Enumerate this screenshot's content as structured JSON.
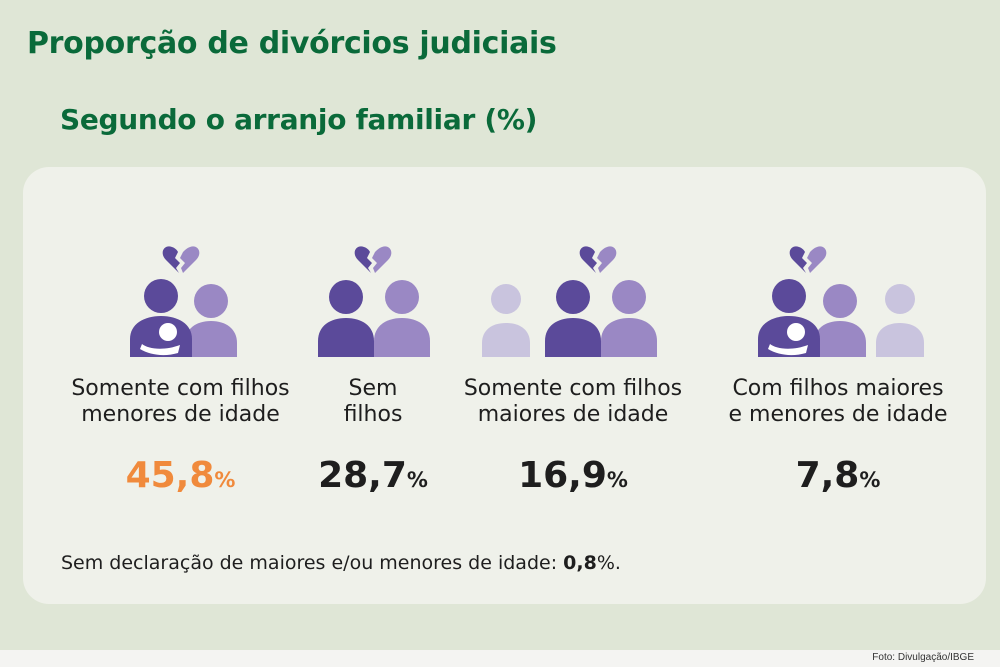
{
  "title": "Proporção de divórcios judiciais",
  "subtitle": "Segundo o arranjo familiar (%)",
  "colors": {
    "title_green": "#0a6a3a",
    "dark_purple": "#5b4a9a",
    "mid_purple": "#9a88c4",
    "light_purple": "#c9c4de",
    "highlight_orange": "#f08a3c"
  },
  "categories": [
    {
      "label": "Somente com filhos\nmenores de idade",
      "value": "45,8",
      "unit": "%",
      "highlight": true,
      "icon": "parent-with-baby-and-adult-broken-heart-icon"
    },
    {
      "label": "Sem\nfilhos",
      "value": "28,7",
      "unit": "%",
      "highlight": false,
      "icon": "couple-broken-heart-icon"
    },
    {
      "label": "Somente com filhos\nmaiores de idade",
      "value": "16,9",
      "unit": "%",
      "highlight": false,
      "icon": "couple-with-adult-child-broken-heart-icon"
    },
    {
      "label": "Com filhos maiores\ne menores de idade",
      "value": "7,8",
      "unit": "%",
      "highlight": false,
      "icon": "family-with-baby-and-adult-child-broken-heart-icon"
    }
  ],
  "footnote": {
    "text": "Sem declaração de maiores e/ou menores de idade: ",
    "value": "0,8",
    "unit": "%."
  },
  "credit": "Foto: Divulgação/IBGE"
}
